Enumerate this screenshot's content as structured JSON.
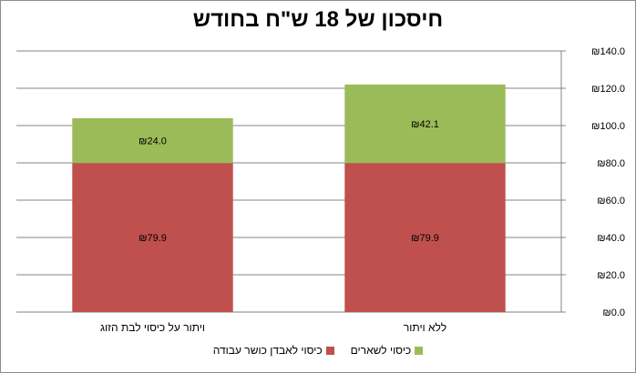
{
  "chart_data": {
    "type": "bar",
    "stacked": true,
    "title": "חיסכון של 18 ש\"ח בחודש",
    "categories": [
      "ויתור על כיסוי לבת הזוג",
      "ללא ויתור"
    ],
    "series": [
      {
        "name": "כיסוי לאבדן כושר עבודה",
        "values": [
          79.9,
          79.9
        ],
        "labels": [
          "₪79.9",
          "₪79.9"
        ],
        "color": "#c0504d"
      },
      {
        "name": "כיסוי לשארים",
        "values": [
          24.0,
          42.1
        ],
        "labels": [
          "₪24.0",
          "₪42.1"
        ],
        "color": "#9bbb59"
      }
    ],
    "ylim": [
      0,
      140
    ],
    "y_ticks": [
      0,
      20,
      40,
      60,
      80,
      100,
      120,
      140
    ],
    "y_tick_labels": [
      "₪0.0",
      "₪20.0",
      "₪40.0",
      "₪60.0",
      "₪80.0",
      "₪100.0",
      "₪120.0",
      "₪140.0"
    ],
    "y_axis_side": "right",
    "grid": true,
    "legend": "bottom",
    "legend_order": [
      "כיסוי לשארים",
      "כיסוי לאבדן כושר עבודה"
    ]
  }
}
